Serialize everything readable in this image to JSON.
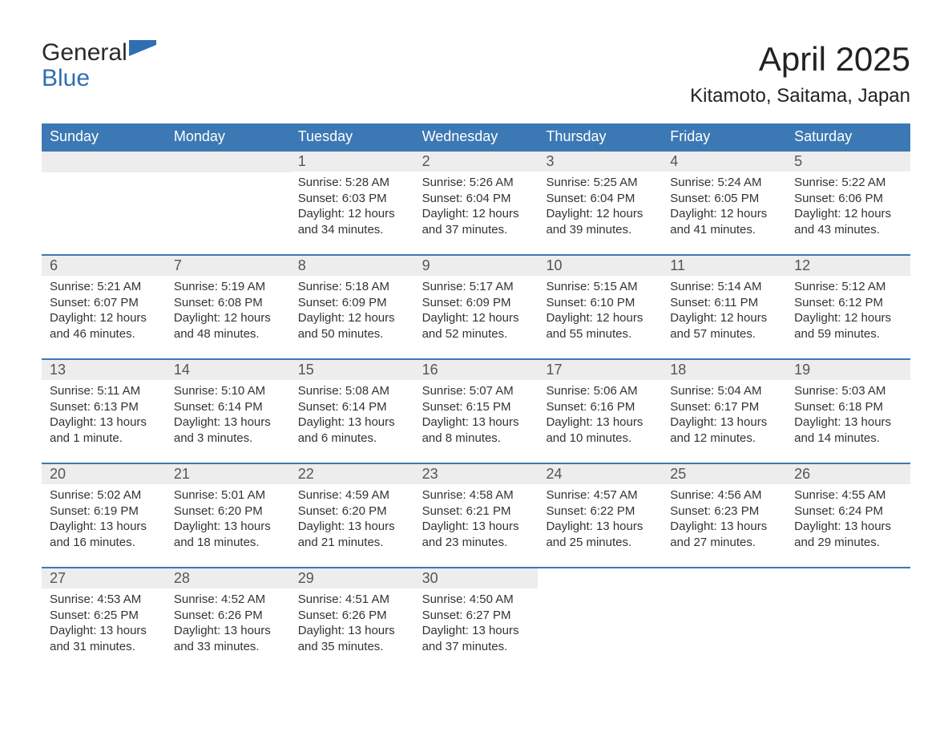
{
  "brand": {
    "word1": "General",
    "word2": "Blue",
    "text_color": "#2a2a2a",
    "accent_color": "#2f6fb1",
    "shape_color": "#2f6fb1"
  },
  "title": {
    "month": "April 2025",
    "location": "Kitamoto, Saitama, Japan"
  },
  "colors": {
    "header_bg": "#3c78b4",
    "header_text": "#ffffff",
    "row_border": "#3c78b4",
    "daynum_bg": "#ededed",
    "daynum_text": "#555555",
    "body_text": "#333333",
    "page_bg": "#ffffff"
  },
  "typography": {
    "title_fontsize": 42,
    "location_fontsize": 24,
    "dayheader_fontsize": 18,
    "daynum_fontsize": 18,
    "body_fontsize": 15,
    "logo_fontsize": 30
  },
  "day_names": [
    "Sunday",
    "Monday",
    "Tuesday",
    "Wednesday",
    "Thursday",
    "Friday",
    "Saturday"
  ],
  "weeks": [
    [
      {
        "blank": true
      },
      {
        "blank": true
      },
      {
        "n": "1",
        "sunrise": "Sunrise: 5:28 AM",
        "sunset": "Sunset: 6:03 PM",
        "daylight": "Daylight: 12 hours and 34 minutes."
      },
      {
        "n": "2",
        "sunrise": "Sunrise: 5:26 AM",
        "sunset": "Sunset: 6:04 PM",
        "daylight": "Daylight: 12 hours and 37 minutes."
      },
      {
        "n": "3",
        "sunrise": "Sunrise: 5:25 AM",
        "sunset": "Sunset: 6:04 PM",
        "daylight": "Daylight: 12 hours and 39 minutes."
      },
      {
        "n": "4",
        "sunrise": "Sunrise: 5:24 AM",
        "sunset": "Sunset: 6:05 PM",
        "daylight": "Daylight: 12 hours and 41 minutes."
      },
      {
        "n": "5",
        "sunrise": "Sunrise: 5:22 AM",
        "sunset": "Sunset: 6:06 PM",
        "daylight": "Daylight: 12 hours and 43 minutes."
      }
    ],
    [
      {
        "n": "6",
        "sunrise": "Sunrise: 5:21 AM",
        "sunset": "Sunset: 6:07 PM",
        "daylight": "Daylight: 12 hours and 46 minutes."
      },
      {
        "n": "7",
        "sunrise": "Sunrise: 5:19 AM",
        "sunset": "Sunset: 6:08 PM",
        "daylight": "Daylight: 12 hours and 48 minutes."
      },
      {
        "n": "8",
        "sunrise": "Sunrise: 5:18 AM",
        "sunset": "Sunset: 6:09 PM",
        "daylight": "Daylight: 12 hours and 50 minutes."
      },
      {
        "n": "9",
        "sunrise": "Sunrise: 5:17 AM",
        "sunset": "Sunset: 6:09 PM",
        "daylight": "Daylight: 12 hours and 52 minutes."
      },
      {
        "n": "10",
        "sunrise": "Sunrise: 5:15 AM",
        "sunset": "Sunset: 6:10 PM",
        "daylight": "Daylight: 12 hours and 55 minutes."
      },
      {
        "n": "11",
        "sunrise": "Sunrise: 5:14 AM",
        "sunset": "Sunset: 6:11 PM",
        "daylight": "Daylight: 12 hours and 57 minutes."
      },
      {
        "n": "12",
        "sunrise": "Sunrise: 5:12 AM",
        "sunset": "Sunset: 6:12 PM",
        "daylight": "Daylight: 12 hours and 59 minutes."
      }
    ],
    [
      {
        "n": "13",
        "sunrise": "Sunrise: 5:11 AM",
        "sunset": "Sunset: 6:13 PM",
        "daylight": "Daylight: 13 hours and 1 minute."
      },
      {
        "n": "14",
        "sunrise": "Sunrise: 5:10 AM",
        "sunset": "Sunset: 6:14 PM",
        "daylight": "Daylight: 13 hours and 3 minutes."
      },
      {
        "n": "15",
        "sunrise": "Sunrise: 5:08 AM",
        "sunset": "Sunset: 6:14 PM",
        "daylight": "Daylight: 13 hours and 6 minutes."
      },
      {
        "n": "16",
        "sunrise": "Sunrise: 5:07 AM",
        "sunset": "Sunset: 6:15 PM",
        "daylight": "Daylight: 13 hours and 8 minutes."
      },
      {
        "n": "17",
        "sunrise": "Sunrise: 5:06 AM",
        "sunset": "Sunset: 6:16 PM",
        "daylight": "Daylight: 13 hours and 10 minutes."
      },
      {
        "n": "18",
        "sunrise": "Sunrise: 5:04 AM",
        "sunset": "Sunset: 6:17 PM",
        "daylight": "Daylight: 13 hours and 12 minutes."
      },
      {
        "n": "19",
        "sunrise": "Sunrise: 5:03 AM",
        "sunset": "Sunset: 6:18 PM",
        "daylight": "Daylight: 13 hours and 14 minutes."
      }
    ],
    [
      {
        "n": "20",
        "sunrise": "Sunrise: 5:02 AM",
        "sunset": "Sunset: 6:19 PM",
        "daylight": "Daylight: 13 hours and 16 minutes."
      },
      {
        "n": "21",
        "sunrise": "Sunrise: 5:01 AM",
        "sunset": "Sunset: 6:20 PM",
        "daylight": "Daylight: 13 hours and 18 minutes."
      },
      {
        "n": "22",
        "sunrise": "Sunrise: 4:59 AM",
        "sunset": "Sunset: 6:20 PM",
        "daylight": "Daylight: 13 hours and 21 minutes."
      },
      {
        "n": "23",
        "sunrise": "Sunrise: 4:58 AM",
        "sunset": "Sunset: 6:21 PM",
        "daylight": "Daylight: 13 hours and 23 minutes."
      },
      {
        "n": "24",
        "sunrise": "Sunrise: 4:57 AM",
        "sunset": "Sunset: 6:22 PM",
        "daylight": "Daylight: 13 hours and 25 minutes."
      },
      {
        "n": "25",
        "sunrise": "Sunrise: 4:56 AM",
        "sunset": "Sunset: 6:23 PM",
        "daylight": "Daylight: 13 hours and 27 minutes."
      },
      {
        "n": "26",
        "sunrise": "Sunrise: 4:55 AM",
        "sunset": "Sunset: 6:24 PM",
        "daylight": "Daylight: 13 hours and 29 minutes."
      }
    ],
    [
      {
        "n": "27",
        "sunrise": "Sunrise: 4:53 AM",
        "sunset": "Sunset: 6:25 PM",
        "daylight": "Daylight: 13 hours and 31 minutes."
      },
      {
        "n": "28",
        "sunrise": "Sunrise: 4:52 AM",
        "sunset": "Sunset: 6:26 PM",
        "daylight": "Daylight: 13 hours and 33 minutes."
      },
      {
        "n": "29",
        "sunrise": "Sunrise: 4:51 AM",
        "sunset": "Sunset: 6:26 PM",
        "daylight": "Daylight: 13 hours and 35 minutes."
      },
      {
        "n": "30",
        "sunrise": "Sunrise: 4:50 AM",
        "sunset": "Sunset: 6:27 PM",
        "daylight": "Daylight: 13 hours and 37 minutes."
      },
      {
        "blank": true,
        "noheader": true
      },
      {
        "blank": true,
        "noheader": true
      },
      {
        "blank": true,
        "noheader": true
      }
    ]
  ]
}
